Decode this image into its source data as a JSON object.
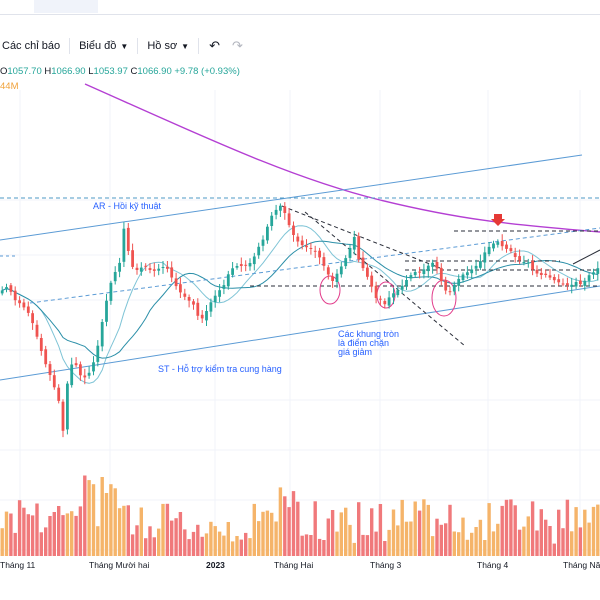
{
  "toolbar": {
    "indicators_label": "Các chỉ báo",
    "chart_label": "Biểu đồ",
    "profile_label": "Hồ sơ"
  },
  "ohlc": {
    "open_label": "O",
    "open_value": "1057.70",
    "high_label": "H",
    "high_value": "1066.90",
    "low_label": "L",
    "low_value": "1053.97",
    "close_label": "C",
    "close_value": "1066.90",
    "change": "+9.78 (+0.93%)"
  },
  "volume_label": "44M",
  "colors": {
    "up": "#26a69a",
    "down": "#ef5350",
    "vol_up": "#f5b46a",
    "vol_down": "#f0797b",
    "ma_long": "#b43fd3",
    "channel": "#5b9bd5"
  },
  "chart_data": {
    "type": "candlestick",
    "x": [
      "Tháng 11",
      "Tháng Mười hai",
      "2023",
      "Tháng Hai",
      "Tháng 3",
      "Tháng 4",
      "Tháng Năm"
    ],
    "annotations": [
      {
        "text": "AR - Hồi kỹ thuật"
      },
      {
        "text": "ST - Hỗ trợ kiểm tra cung hàng"
      },
      {
        "lines": [
          "Các khung tròn",
          "là điểm chặn",
          "giá giảm"
        ]
      }
    ],
    "grid": true,
    "legend": "none"
  }
}
